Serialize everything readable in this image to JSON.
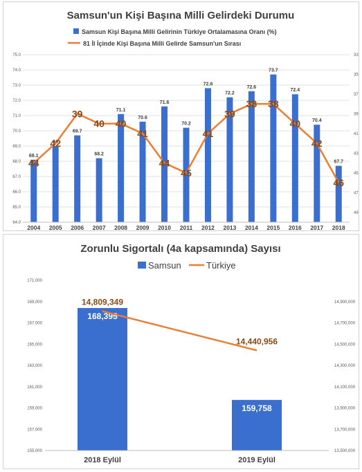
{
  "colors": {
    "bar": "#3b6fcf",
    "bar_dark": "#1f4fa8",
    "line": "#ed7d31",
    "line_label": "#8a4a12",
    "axis_text": "#595959",
    "grid": "#d9d9d9",
    "title": "#404040"
  },
  "chart_data": [
    {
      "type": "bar+line",
      "title": "Samsun'un Kişi Başına Milli Gelirdeki Durumu",
      "categories": [
        "2004",
        "2005",
        "2006",
        "2007",
        "2008",
        "2009",
        "2010",
        "2011",
        "2012",
        "2013",
        "2014",
        "2015",
        "2016",
        "2017",
        "2018"
      ],
      "series": [
        {
          "name": "Samsun Kişi Başına Milli Gelirinin Türkiye Ortalamasına Oranı (%)",
          "type": "bar",
          "axis": "left",
          "values": [
            68.1,
            69.0,
            69.7,
            68.2,
            71.1,
            70.6,
            71.6,
            70.2,
            72.8,
            72.2,
            72.6,
            73.7,
            72.4,
            70.4,
            67.7
          ],
          "labels": [
            "68.1",
            "69",
            "69.7",
            "68.2",
            "71.1",
            "70.6",
            "71.6",
            "70.2",
            "72.8",
            "72.2",
            "72.6",
            "73.7",
            "72.4",
            "70.4",
            "67.7"
          ]
        },
        {
          "name": "81 İl İçinde Kişi Başına Milli Gelirde Samsun'un Sırası",
          "type": "line",
          "axis": "right",
          "values": [
            44,
            42,
            39,
            40,
            40,
            41,
            44,
            45,
            41,
            39,
            38,
            38,
            40,
            42,
            46
          ]
        }
      ],
      "y_left": {
        "range": [
          64.0,
          75.0
        ],
        "ticks": [
          "75.0",
          "74.0",
          "73.0",
          "72.0",
          "71.0",
          "70.0",
          "69.0",
          "68.0",
          "67.0",
          "66.0",
          "65.0",
          "64.0"
        ]
      },
      "y_right": {
        "range": [
          33,
          50
        ],
        "reversed": true,
        "ticks": [
          "33",
          "35",
          "37",
          "39",
          "41",
          "43",
          "45",
          "47",
          "49"
        ]
      },
      "grid": true,
      "legend_position": "top"
    },
    {
      "type": "bar+line",
      "title": "Zorunlu Sigortalı (4a kapsamında) Sayısı",
      "categories": [
        "2018 Eylül",
        "2019 Eylül"
      ],
      "series": [
        {
          "name": "Samsun",
          "type": "bar",
          "axis": "left",
          "values": [
            168395,
            159758
          ],
          "labels": [
            "168,395",
            "159,758"
          ]
        },
        {
          "name": "Türkiye",
          "type": "line",
          "axis": "right",
          "values": [
            14809349,
            14440956
          ],
          "labels": [
            "14,809,349",
            "14,440,956"
          ]
        }
      ],
      "y_left": {
        "range": [
          155000,
          171000
        ],
        "ticks": [
          "171,000",
          "169,000",
          "167,000",
          "165,000",
          "163,000",
          "161,000",
          "159,000",
          "157,000",
          "155,000"
        ]
      },
      "y_right": {
        "range": [
          13500000,
          15100000
        ],
        "ticks": [
          "14,900,000",
          "14,700,000",
          "14,500,000",
          "14,300,000",
          "14,100,000",
          "13,900,000",
          "13,700,000",
          "13,500,000"
        ]
      },
      "grid": false,
      "legend_position": "top"
    }
  ]
}
